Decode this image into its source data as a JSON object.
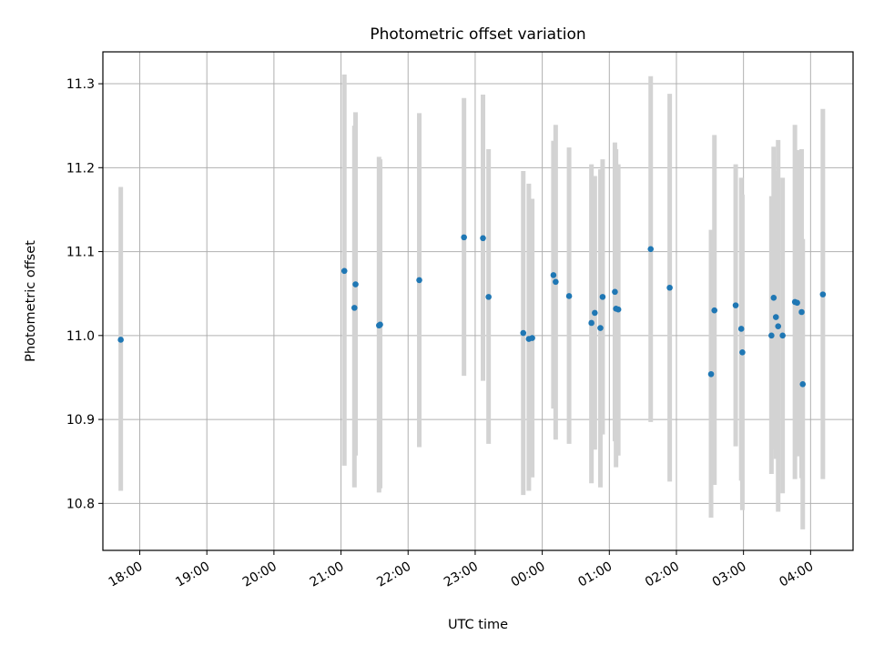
{
  "chart_data": {
    "type": "scatter",
    "title": "Photometric offset variation",
    "xlabel": "UTC time",
    "ylabel": "Photometric offset",
    "x_unit": "UTC",
    "xlim": [
      "17:27",
      "04:38"
    ],
    "ylim": [
      10.744,
      11.338
    ],
    "x_ticks": [
      "18:00",
      "19:00",
      "20:00",
      "21:00",
      "22:00",
      "23:00",
      "00:00",
      "01:00",
      "02:00",
      "03:00",
      "04:00"
    ],
    "y_ticks": [
      10.8,
      10.9,
      11.0,
      11.1,
      11.2,
      11.3
    ],
    "y_tick_labels": [
      "10.8",
      "10.9",
      "11.0",
      "11.1",
      "11.2",
      "11.3"
    ],
    "grid": true,
    "marker_color": "#1f77b4",
    "errorbar_color": "#d3d3d3",
    "points": [
      {
        "t": "17:43",
        "y": 10.995,
        "lo": 10.815,
        "hi": 11.177
      },
      {
        "t": "21:03",
        "y": 11.077,
        "lo": 10.845,
        "hi": 11.311
      },
      {
        "t": "21:12",
        "y": 11.033,
        "lo": 10.819,
        "hi": 11.25
      },
      {
        "t": "21:13",
        "y": 11.061,
        "lo": 10.857,
        "hi": 11.266
      },
      {
        "t": "21:34",
        "y": 11.012,
        "lo": 10.813,
        "hi": 11.213
      },
      {
        "t": "21:35",
        "y": 11.013,
        "lo": 10.818,
        "hi": 11.21
      },
      {
        "t": "22:10",
        "y": 11.066,
        "lo": 10.867,
        "hi": 11.265
      },
      {
        "t": "22:50",
        "y": 11.117,
        "lo": 10.952,
        "hi": 11.283
      },
      {
        "t": "23:07",
        "y": 11.116,
        "lo": 10.946,
        "hi": 11.287
      },
      {
        "t": "23:12",
        "y": 11.046,
        "lo": 10.871,
        "hi": 11.222
      },
      {
        "t": "23:43",
        "y": 11.003,
        "lo": 10.81,
        "hi": 11.196
      },
      {
        "t": "23:48",
        "y": 10.996,
        "lo": 10.815,
        "hi": 11.181
      },
      {
        "t": "23:51",
        "y": 10.997,
        "lo": 10.831,
        "hi": 11.163
      },
      {
        "t": "00:10",
        "y": 11.072,
        "lo": 10.913,
        "hi": 11.232
      },
      {
        "t": "00:12",
        "y": 11.064,
        "lo": 10.876,
        "hi": 11.251
      },
      {
        "t": "00:24",
        "y": 11.047,
        "lo": 10.871,
        "hi": 11.224
      },
      {
        "t": "00:44",
        "y": 11.015,
        "lo": 10.824,
        "hi": 11.204
      },
      {
        "t": "00:47",
        "y": 11.027,
        "lo": 10.864,
        "hi": 11.19
      },
      {
        "t": "00:52",
        "y": 11.009,
        "lo": 10.819,
        "hi": 11.198
      },
      {
        "t": "00:54",
        "y": 11.046,
        "lo": 10.882,
        "hi": 11.21
      },
      {
        "t": "01:05",
        "y": 11.052,
        "lo": 10.874,
        "hi": 11.23
      },
      {
        "t": "01:06",
        "y": 11.032,
        "lo": 10.843,
        "hi": 11.222
      },
      {
        "t": "01:08",
        "y": 11.031,
        "lo": 10.857,
        "hi": 11.204
      },
      {
        "t": "01:37",
        "y": 11.103,
        "lo": 10.897,
        "hi": 11.309
      },
      {
        "t": "01:54",
        "y": 11.057,
        "lo": 10.826,
        "hi": 11.288
      },
      {
        "t": "02:31",
        "y": 10.954,
        "lo": 10.783,
        "hi": 11.126
      },
      {
        "t": "02:34",
        "y": 11.03,
        "lo": 10.822,
        "hi": 11.239
      },
      {
        "t": "02:53",
        "y": 11.036,
        "lo": 10.868,
        "hi": 11.204
      },
      {
        "t": "02:58",
        "y": 11.008,
        "lo": 10.827,
        "hi": 11.188
      },
      {
        "t": "02:59",
        "y": 10.98,
        "lo": 10.792,
        "hi": 11.168
      },
      {
        "t": "03:25",
        "y": 11.0,
        "lo": 10.835,
        "hi": 11.166
      },
      {
        "t": "03:27",
        "y": 11.045,
        "lo": 10.864,
        "hi": 11.225
      },
      {
        "t": "03:29",
        "y": 11.022,
        "lo": 10.853,
        "hi": 11.196
      },
      {
        "t": "03:31",
        "y": 11.011,
        "lo": 10.79,
        "hi": 11.233
      },
      {
        "t": "03:35",
        "y": 11.0,
        "lo": 10.812,
        "hi": 11.188
      },
      {
        "t": "03:46",
        "y": 11.04,
        "lo": 10.829,
        "hi": 11.251
      },
      {
        "t": "03:48",
        "y": 11.039,
        "lo": 10.856,
        "hi": 11.221
      },
      {
        "t": "03:52",
        "y": 11.028,
        "lo": 10.83,
        "hi": 11.222
      },
      {
        "t": "03:53",
        "y": 10.942,
        "lo": 10.769,
        "hi": 11.115
      },
      {
        "t": "04:11",
        "y": 11.049,
        "lo": 10.829,
        "hi": 11.27
      }
    ]
  }
}
